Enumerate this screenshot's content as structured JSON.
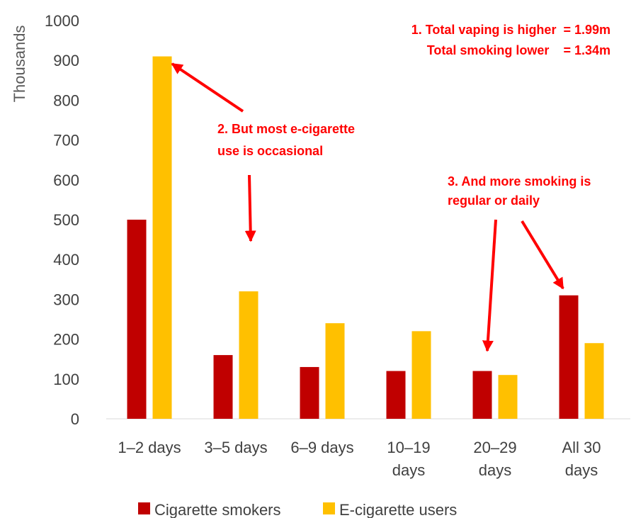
{
  "chart_data": {
    "type": "bar",
    "ylabel": "Thousands",
    "xlabel": "",
    "ylim": [
      0,
      1000
    ],
    "yticks": [
      0,
      100,
      200,
      300,
      400,
      500,
      600,
      700,
      800,
      900,
      1000
    ],
    "categories": [
      [
        "1–2 days"
      ],
      [
        "3–5 days"
      ],
      [
        "6–9 days"
      ],
      [
        "10–19",
        "days"
      ],
      [
        "20–29",
        "days"
      ],
      [
        "All 30",
        "days"
      ]
    ],
    "series": [
      {
        "name": "Cigarette smokers",
        "color": "#c00000",
        "values": [
          500,
          160,
          130,
          120,
          120,
          310
        ]
      },
      {
        "name": "E-cigarette users",
        "color": "#ffc000",
        "values": [
          910,
          320,
          240,
          220,
          110,
          190
        ]
      }
    ],
    "legend": "bottom",
    "grid": false,
    "annotations": [
      {
        "lines": [
          "1. Total vaping is higher  = 1.99m",
          "Total smoking lower    = 1.34m"
        ]
      },
      {
        "lines": [
          "2. But most e-cigarette",
          "use is occasional"
        ]
      },
      {
        "lines": [
          "3. And more smoking is",
          "regular or daily"
        ]
      }
    ],
    "annotation_color": "#ff0000"
  }
}
